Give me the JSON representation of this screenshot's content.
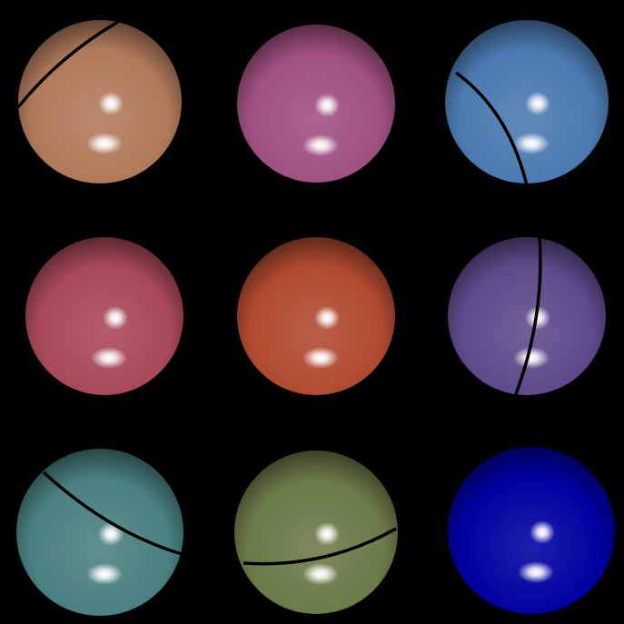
{
  "scene": {
    "background": "#000000",
    "grid": {
      "rows": 3,
      "cols": 3
    },
    "spheres": [
      {
        "color": "#b07a5a",
        "has_seam": true,
        "seam_shape": "diagonal-arc-top-left"
      },
      {
        "color": "#a0507f",
        "has_seam": false,
        "seam_shape": ""
      },
      {
        "color": "#4a7ab0",
        "has_seam": true,
        "seam_shape": "vertical-arc-left"
      },
      {
        "color": "#a84858",
        "has_seam": false,
        "seam_shape": ""
      },
      {
        "color": "#b04a30",
        "has_seam": false,
        "seam_shape": ""
      },
      {
        "color": "#5e4a8a",
        "has_seam": true,
        "seam_shape": "vertical-arc-right"
      },
      {
        "color": "#4a8080",
        "has_seam": true,
        "seam_shape": "diagonal-arc-upper"
      },
      {
        "color": "#6a7a48",
        "has_seam": true,
        "seam_shape": "horizontal-arc-lower"
      },
      {
        "color": "#0000a0",
        "has_seam": false,
        "seam_shape": ""
      }
    ]
  }
}
